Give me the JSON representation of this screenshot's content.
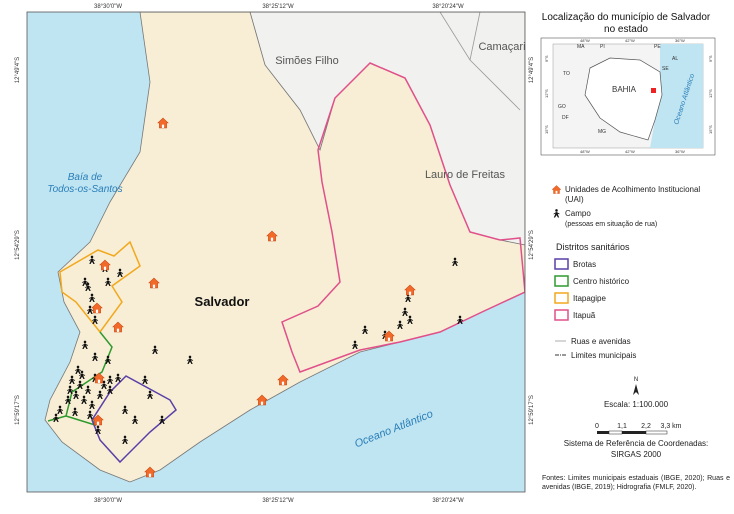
{
  "map": {
    "longitudes": [
      "38°30'0\"W",
      "38°25'12\"W",
      "38°20'24\"W"
    ],
    "latitudes": [
      "12°49'4\"S",
      "12°54'29\"S",
      "12°59'17\"S"
    ],
    "labels": {
      "neighbor_north": "Simões Filho",
      "neighbor_northeast": "Camaçari",
      "bay": [
        "Baía de",
        "Todos-os-Santos"
      ],
      "neighbor_east": "Lauro de Freitas",
      "city": "Salvador",
      "ocean": "Oceano Atlântico"
    }
  },
  "inset": {
    "title": [
      "Localização do município de Salvador",
      "no estado"
    ],
    "states": [
      "MA",
      "PI",
      "PE",
      "AL",
      "SE",
      "TO",
      "GO",
      "DF",
      "MG"
    ],
    "state_main": "BAHIA",
    "ocean": "Oceano Atlântico",
    "longitudes": [
      "48°W",
      "42°W",
      "36°W"
    ],
    "latitudes": [
      "9°S",
      "12°S",
      "15°S"
    ]
  },
  "legend": {
    "uai": [
      "Unidades de Acolhimento Institucional",
      "(UAI)"
    ],
    "campo": [
      "Campo",
      "(pessoas em situação de rua)"
    ],
    "districts_title": "Distritos sanitários",
    "districts": [
      "Brotas",
      "Centro histórico",
      "Itapagipe",
      "Itapuã"
    ],
    "roads": "Ruas e avenidas",
    "limits": "Limites municipais"
  },
  "scale": {
    "north": "N",
    "ratio": "Escala: 1:100.000",
    "ticks": [
      "0",
      "1,1",
      "2,2",
      "3,3 km"
    ],
    "crs": [
      "Sistema de Referência de Coordenadas:",
      "SIRGAS 2000"
    ]
  },
  "sources": "Fontes: Limites municipais estaduais (IBGE, 2020); Ruas e avenidas (IBGE, 2019); Hidrografia (FMLF, 2020)."
}
